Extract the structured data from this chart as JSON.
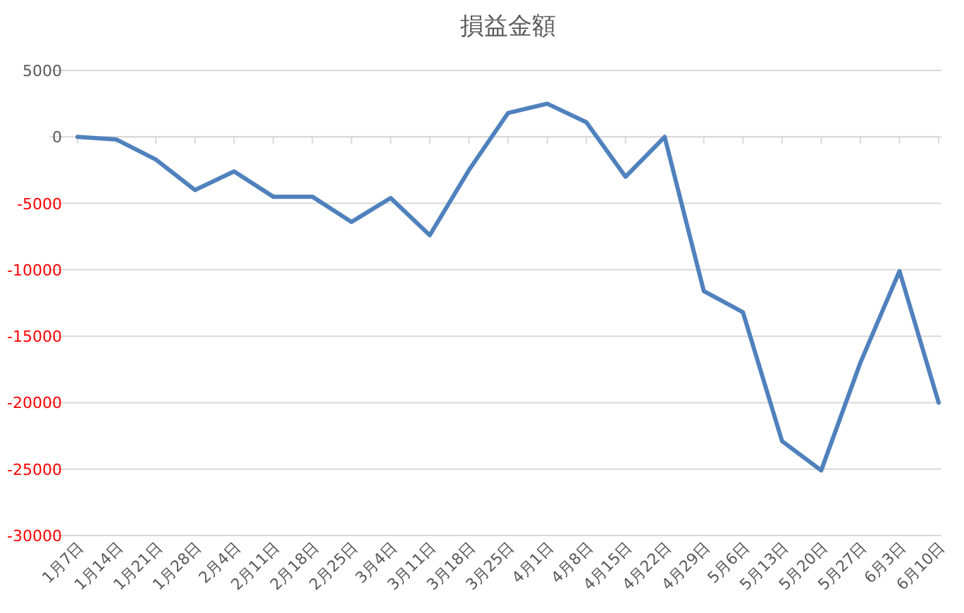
{
  "chart_data": {
    "type": "line",
    "title": "損益金額",
    "categories": [
      "1月7日",
      "1月14日",
      "1月21日",
      "1月28日",
      "2月4日",
      "2月11日",
      "2月18日",
      "2月25日",
      "3月4日",
      "3月11日",
      "3月18日",
      "3月25日",
      "4月1日",
      "4月8日",
      "4月15日",
      "4月22日",
      "4月29日",
      "5月6日",
      "5月13日",
      "5月20日",
      "5月27日",
      "6月3日",
      "6月10日"
    ],
    "series": [
      {
        "color": "#4f81bd",
        "values": [
          0,
          -200,
          -1700,
          -4000,
          -2600,
          -4500,
          -4500,
          -6400,
          -4600,
          -7400,
          -2500,
          1800,
          2500,
          1100,
          -3000,
          0,
          -11600,
          -13200,
          -22900,
          -25100,
          -17000,
          -10100,
          -20000
        ]
      }
    ],
    "ylim": [
      -30000,
      5000
    ],
    "yticks": [
      -30000,
      -25000,
      -20000,
      -15000,
      -10000,
      -5000,
      0,
      5000
    ],
    "grid": "y",
    "marker": "none",
    "line_style": "solid"
  }
}
